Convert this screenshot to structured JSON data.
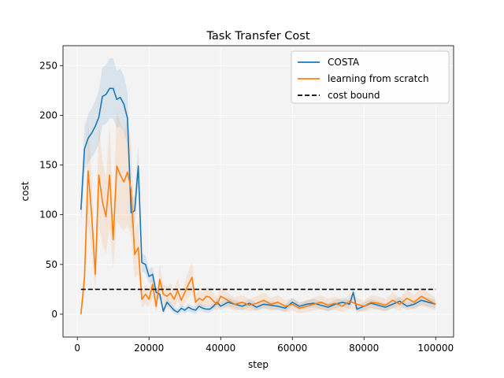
{
  "chart_data": {
    "type": "line",
    "title": "Task Transfer Cost",
    "xlabel": "step",
    "ylabel": "cost",
    "xlim": [
      -4000,
      105000
    ],
    "ylim": [
      -23,
      270
    ],
    "xticks": [
      0,
      20000,
      40000,
      60000,
      80000,
      100000
    ],
    "yticks": [
      0,
      50,
      100,
      150,
      200,
      250
    ],
    "grid": true,
    "legend_position": "top-right",
    "background": "#f3f3f3",
    "series": [
      {
        "name": "COSTA",
        "color": "#1f77b4",
        "band_spread": 0.12,
        "x": [
          1000,
          2000,
          3000,
          4000,
          5000,
          6000,
          7000,
          8000,
          9000,
          10000,
          11000,
          12000,
          13000,
          14000,
          15000,
          16000,
          17000,
          18000,
          19000,
          20000,
          21000,
          22000,
          23000,
          24000,
          25000,
          26000,
          27000,
          28000,
          29000,
          30000,
          31000,
          32000,
          33000,
          34000,
          35000,
          36000,
          37000,
          38000,
          39000,
          40000,
          42000,
          44000,
          46000,
          48000,
          50000,
          52000,
          54000,
          56000,
          58000,
          60000,
          62000,
          64000,
          66000,
          68000,
          70000,
          72000,
          74000,
          76000,
          77000,
          78000,
          80000,
          82000,
          84000,
          86000,
          88000,
          90000,
          92000,
          94000,
          96000,
          98000,
          100000
        ],
        "values": [
          105,
          166,
          177,
          182,
          189,
          198,
          219,
          221,
          227,
          227,
          216,
          218,
          211,
          197,
          102,
          104,
          149,
          52,
          50,
          38,
          40,
          22,
          20,
          3,
          12,
          8,
          4,
          2,
          6,
          4,
          7,
          5,
          4,
          8,
          6,
          5,
          5,
          8,
          12,
          8,
          12,
          10,
          8,
          11,
          7,
          10,
          9,
          8,
          6,
          12,
          8,
          10,
          11,
          9,
          7,
          10,
          12,
          10,
          22,
          5,
          8,
          11,
          9,
          7,
          10,
          13,
          8,
          10,
          14,
          12,
          10
        ]
      },
      {
        "name": "learning from scratch",
        "color": "#ff7f0e",
        "band_spread": 0.35,
        "x": [
          1000,
          2000,
          3000,
          4000,
          5000,
          6000,
          7000,
          8000,
          9000,
          10000,
          11000,
          12000,
          13000,
          14000,
          15000,
          16000,
          17000,
          18000,
          19000,
          20000,
          21000,
          22000,
          23000,
          24000,
          25000,
          26000,
          27000,
          28000,
          29000,
          30000,
          31000,
          32000,
          33000,
          34000,
          35000,
          36000,
          37000,
          38000,
          39000,
          40000,
          42000,
          44000,
          46000,
          48000,
          50000,
          52000,
          54000,
          56000,
          58000,
          60000,
          62000,
          64000,
          66000,
          68000,
          70000,
          72000,
          74000,
          76000,
          78000,
          80000,
          82000,
          84000,
          86000,
          88000,
          90000,
          92000,
          94000,
          96000,
          98000,
          100000
        ],
        "values": [
          0,
          37,
          144,
          100,
          40,
          140,
          113,
          98,
          140,
          75,
          149,
          140,
          133,
          143,
          125,
          60,
          67,
          15,
          20,
          15,
          30,
          8,
          35,
          20,
          18,
          21,
          15,
          24,
          14,
          22,
          30,
          37,
          12,
          16,
          14,
          18,
          17,
          13,
          10,
          18,
          14,
          10,
          12,
          9,
          11,
          14,
          10,
          12,
          8,
          10,
          6,
          8,
          10,
          12,
          9,
          11,
          8,
          13,
          10,
          8,
          12,
          11,
          9,
          14,
          10,
          16,
          12,
          18,
          14,
          10
        ]
      },
      {
        "name": "cost bound",
        "color": "#000000",
        "dashed": true,
        "x": [
          1000,
          100000
        ],
        "values": [
          25,
          25
        ]
      }
    ]
  }
}
